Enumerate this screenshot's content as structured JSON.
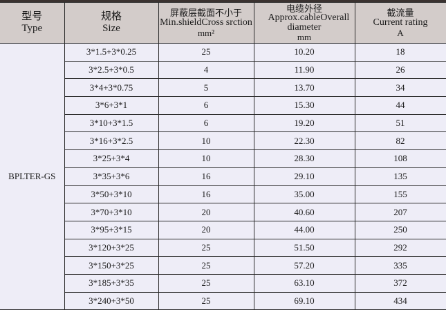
{
  "headers": [
    {
      "cn": "型号",
      "en": "Type"
    },
    {
      "cn": "规格",
      "en": "Size"
    },
    {
      "cn": "屏蔽层截面不小于",
      "en": "Min.shieldCross srction",
      "unit": "mm²"
    },
    {
      "cn": "电缆外径",
      "en": "Approx.cableOverall diameter",
      "unit": "mm"
    },
    {
      "cn": "截流量",
      "en": "Current rating",
      "unit": "A"
    }
  ],
  "type": "BPLTER-GS",
  "rows": [
    [
      "3*1.5+3*0.25",
      "25",
      "10.20",
      "18"
    ],
    [
      "3*2.5+3*0.5",
      "4",
      "11.90",
      "26"
    ],
    [
      "3*4+3*0.75",
      "5",
      "13.70",
      "34"
    ],
    [
      "3*6+3*1",
      "6",
      "15.30",
      "44"
    ],
    [
      "3*10+3*1.5",
      "6",
      "19.20",
      "51"
    ],
    [
      "3*16+3*2.5",
      "10",
      "22.30",
      "82"
    ],
    [
      "3*25+3*4",
      "10",
      "28.30",
      "108"
    ],
    [
      "3*35+3*6",
      "16",
      "29.10",
      "135"
    ],
    [
      "3*50+3*10",
      "16",
      "35.00",
      "155"
    ],
    [
      "3*70+3*10",
      "20",
      "40.60",
      "207"
    ],
    [
      "3*95+3*15",
      "20",
      "44.00",
      "250"
    ],
    [
      "3*120+3*25",
      "25",
      "51.50",
      "292"
    ],
    [
      "3*150+3*25",
      "25",
      "57.20",
      "335"
    ],
    [
      "3*185+3*35",
      "25",
      "63.10",
      "372"
    ],
    [
      "3*240+3*50",
      "25",
      "69.10",
      "434"
    ]
  ]
}
